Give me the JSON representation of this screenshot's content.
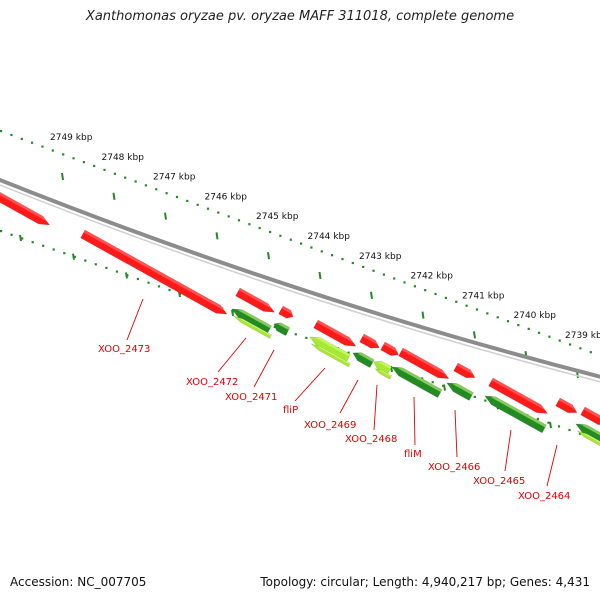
{
  "title": "Xanthomonas oryzae pv. oryzae MAFF 311018, complete genome",
  "footer": {
    "accession": "Accession: NC_007705",
    "summary": "Topology: circular; Length: 4,940,217 bp; Genes: 4,431"
  },
  "colors": {
    "forward_gene": "#ff1a1a",
    "reverse_gene": "#228b22",
    "reverse_gene_light": "#a8e830",
    "backbone": "#8c8c8c",
    "ticks": "#228b22",
    "label": "#e00000"
  },
  "scale_labels": [
    "2749 kbp",
    "2748 kbp",
    "2747 kbp",
    "2746 kbp",
    "2745 kbp",
    "2744 kbp",
    "2743 kbp",
    "2742 kbp",
    "2741 kbp",
    "2740 kbp",
    "2739 kbp"
  ],
  "genes": [
    {
      "label": "XOO_2473",
      "strand": "forward"
    },
    {
      "label": "XOO_2472",
      "strand": "reverse"
    },
    {
      "label": "XOO_2471",
      "strand": "reverse"
    },
    {
      "label": "fliP",
      "strand": "reverse"
    },
    {
      "label": "XOO_2469",
      "strand": "reverse"
    },
    {
      "label": "XOO_2468",
      "strand": "reverse"
    },
    {
      "label": "fliM",
      "strand": "reverse"
    },
    {
      "label": "XOO_2466",
      "strand": "reverse"
    },
    {
      "label": "XOO_2465",
      "strand": "reverse"
    },
    {
      "label": "XOO_2464",
      "strand": "reverse"
    }
  ]
}
